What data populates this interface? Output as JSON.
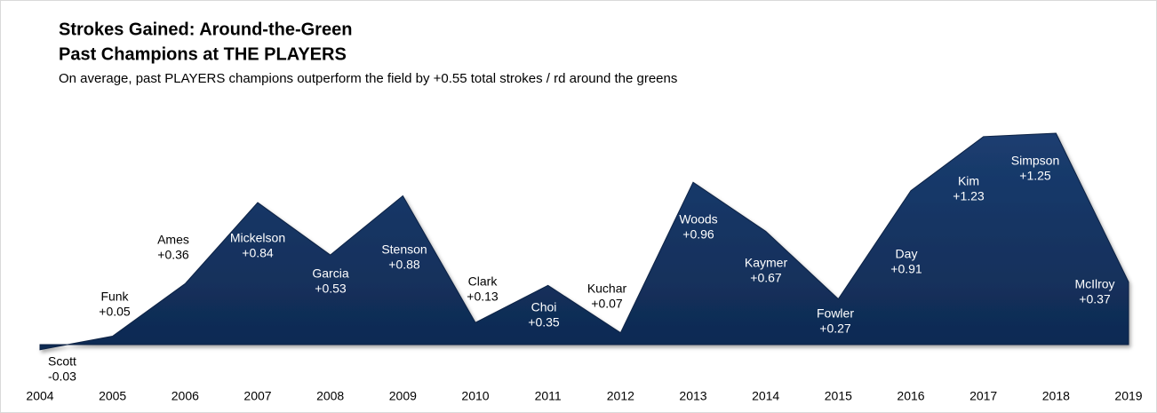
{
  "chart_data": {
    "type": "area",
    "title": "Strokes Gained: Around-the-Green",
    "subtitle": "Past Champions at THE PLAYERS",
    "description": "On average, past PLAYERS champions outperform the field by +0.55 total strokes / rd around the greens",
    "categories": [
      "2004",
      "2005",
      "2006",
      "2007",
      "2008",
      "2009",
      "2010",
      "2011",
      "2012",
      "2013",
      "2014",
      "2015",
      "2016",
      "2017",
      "2018",
      "2019"
    ],
    "names": [
      "Scott",
      "Funk",
      "Ames",
      "Mickelson",
      "Garcia",
      "Stenson",
      "Clark",
      "Choi",
      "Kuchar",
      "Woods",
      "Kaymer",
      "Fowler",
      "Day",
      "Kim",
      "Simpson",
      "McIlroy"
    ],
    "values": [
      -0.03,
      0.05,
      0.36,
      0.84,
      0.53,
      0.88,
      0.13,
      0.35,
      0.07,
      0.96,
      0.67,
      0.27,
      0.91,
      1.23,
      1.25,
      0.37
    ],
    "value_labels": [
      "-0.03",
      "+0.05",
      "+0.36",
      "+0.84",
      "+0.53",
      "+0.88",
      "+0.13",
      "+0.35",
      "+0.07",
      "+0.96",
      "+0.67",
      "+0.27",
      "+0.91",
      "+1.23",
      "+1.25",
      "+0.37"
    ],
    "color": "#14325f"
  }
}
